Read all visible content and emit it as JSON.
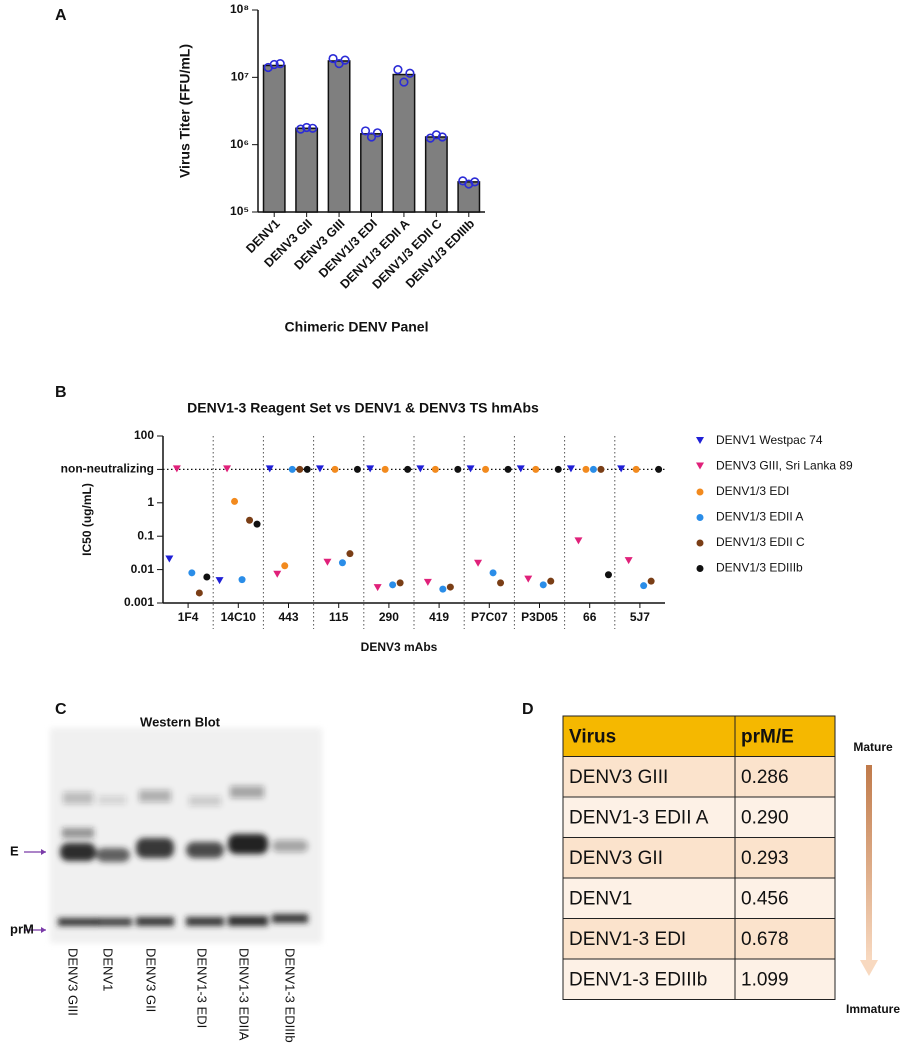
{
  "chart_data": [
    {
      "type": "bar",
      "label": "A",
      "y_label": "Virus Titer (FFU/mL)",
      "x_label": "Chimeric DENV Panel",
      "categories": [
        "DENV1",
        "DENV3 GII",
        "DENV3 GIII",
        "DENV1/3 EDI",
        "DENV1/3 EDII A",
        "DENV1/3 EDII C",
        "DENV1/3 EDIIIb"
      ],
      "values": [
        15000000,
        1750000,
        17500000,
        1450000,
        11000000,
        1300000,
        280000
      ],
      "points": [
        [
          14000000,
          15500000,
          16000000
        ],
        [
          1700000,
          1800000,
          1750000
        ],
        [
          19000000,
          16000000,
          18000000
        ],
        [
          1600000,
          1300000,
          1500000
        ],
        [
          13000000,
          8500000,
          11500000
        ],
        [
          1250000,
          1400000,
          1300000
        ],
        [
          290000,
          260000,
          280000
        ]
      ],
      "color": "#7f7f7f",
      "point_color": "#2b2bd6",
      "log": true,
      "ylim": [
        100000,
        100000000
      ],
      "yticks": [
        {
          "value": 100000,
          "label": "10⁵"
        },
        {
          "value": 1000000,
          "label": "10⁶"
        },
        {
          "value": 10000000,
          "label": "10⁷"
        },
        {
          "value": 100000000,
          "label": "10⁸"
        }
      ]
    },
    {
      "type": "scatter",
      "label": "B",
      "title": "DENV1-3 Reagent Set vs DENV1 & DENV3 TS hmAbs",
      "y_label": "IC50 (ug/mL)",
      "x_label": "DENV3 mAbs",
      "categories": [
        "1F4",
        "14C10",
        "443",
        "115",
        "290",
        "419",
        "P7C07",
        "P3D05",
        "66",
        "5J7"
      ],
      "log": true,
      "ylim": [
        0.001,
        100
      ],
      "yticks": [
        0.001,
        0.01,
        0.1,
        1,
        {
          "value": 10,
          "label": "non-neutralizing"
        },
        100
      ],
      "reference_line": 10,
      "legend": "right",
      "series": [
        {
          "name": "DENV1 Westpac 74",
          "color": "#1f1fd6",
          "marker": "triangle-down",
          "values": [
            0.02,
            0.0045,
            10,
            10,
            10,
            10,
            10,
            10,
            10,
            10
          ]
        },
        {
          "name": "DENV3 GIII, Sri Lanka 89",
          "color": "#e0217a",
          "marker": "triangle-down",
          "values": [
            10,
            10,
            0.007,
            0.016,
            0.0028,
            0.004,
            0.015,
            0.005,
            0.07,
            0.018
          ]
        },
        {
          "name": "DENV1/3 EDI",
          "color": "#f28a1e",
          "marker": "circle",
          "values": [
            null,
            1.1,
            0.013,
            10,
            10,
            10,
            10,
            10,
            10,
            10
          ]
        },
        {
          "name": "DENV1/3 EDII A",
          "color": "#2a8de8",
          "marker": "circle",
          "values": [
            0.008,
            0.005,
            10,
            0.016,
            0.0035,
            0.0026,
            0.008,
            0.0035,
            10,
            0.0033
          ]
        },
        {
          "name": "DENV1/3 EDII C",
          "color": "#7a3e16",
          "marker": "circle",
          "values": [
            0.002,
            0.3,
            10,
            0.03,
            0.004,
            0.003,
            0.004,
            0.0045,
            10,
            0.0045
          ]
        },
        {
          "name": "DENV1/3 EDIIIb",
          "color": "#111111",
          "marker": "circle",
          "values": [
            0.006,
            0.23,
            10,
            10,
            10,
            10,
            10,
            10,
            0.007,
            10
          ]
        }
      ]
    }
  ],
  "blot": {
    "label": "C",
    "title": "Western Blot",
    "markers": [
      "E",
      "prM"
    ],
    "lanes": [
      "DENV3 GIII",
      "DENV1",
      "DENV3 GII",
      "DENV1-3 EDI",
      "DENV1-3 EDIIA",
      "DENV1-3 EDIIIb"
    ]
  },
  "table": {
    "label": "D",
    "columns": [
      "Virus",
      "prM/E"
    ],
    "rows": [
      [
        "DENV3 GIII",
        "0.286"
      ],
      [
        "DENV1-3 EDII A",
        "0.290"
      ],
      [
        "DENV3 GII",
        "0.293"
      ],
      [
        "DENV1",
        "0.456"
      ],
      [
        "DENV1-3 EDI",
        "0.678"
      ],
      [
        "DENV1-3 EDIIIb",
        "1.099"
      ]
    ],
    "arrow": [
      "Mature",
      "Immature"
    ]
  }
}
